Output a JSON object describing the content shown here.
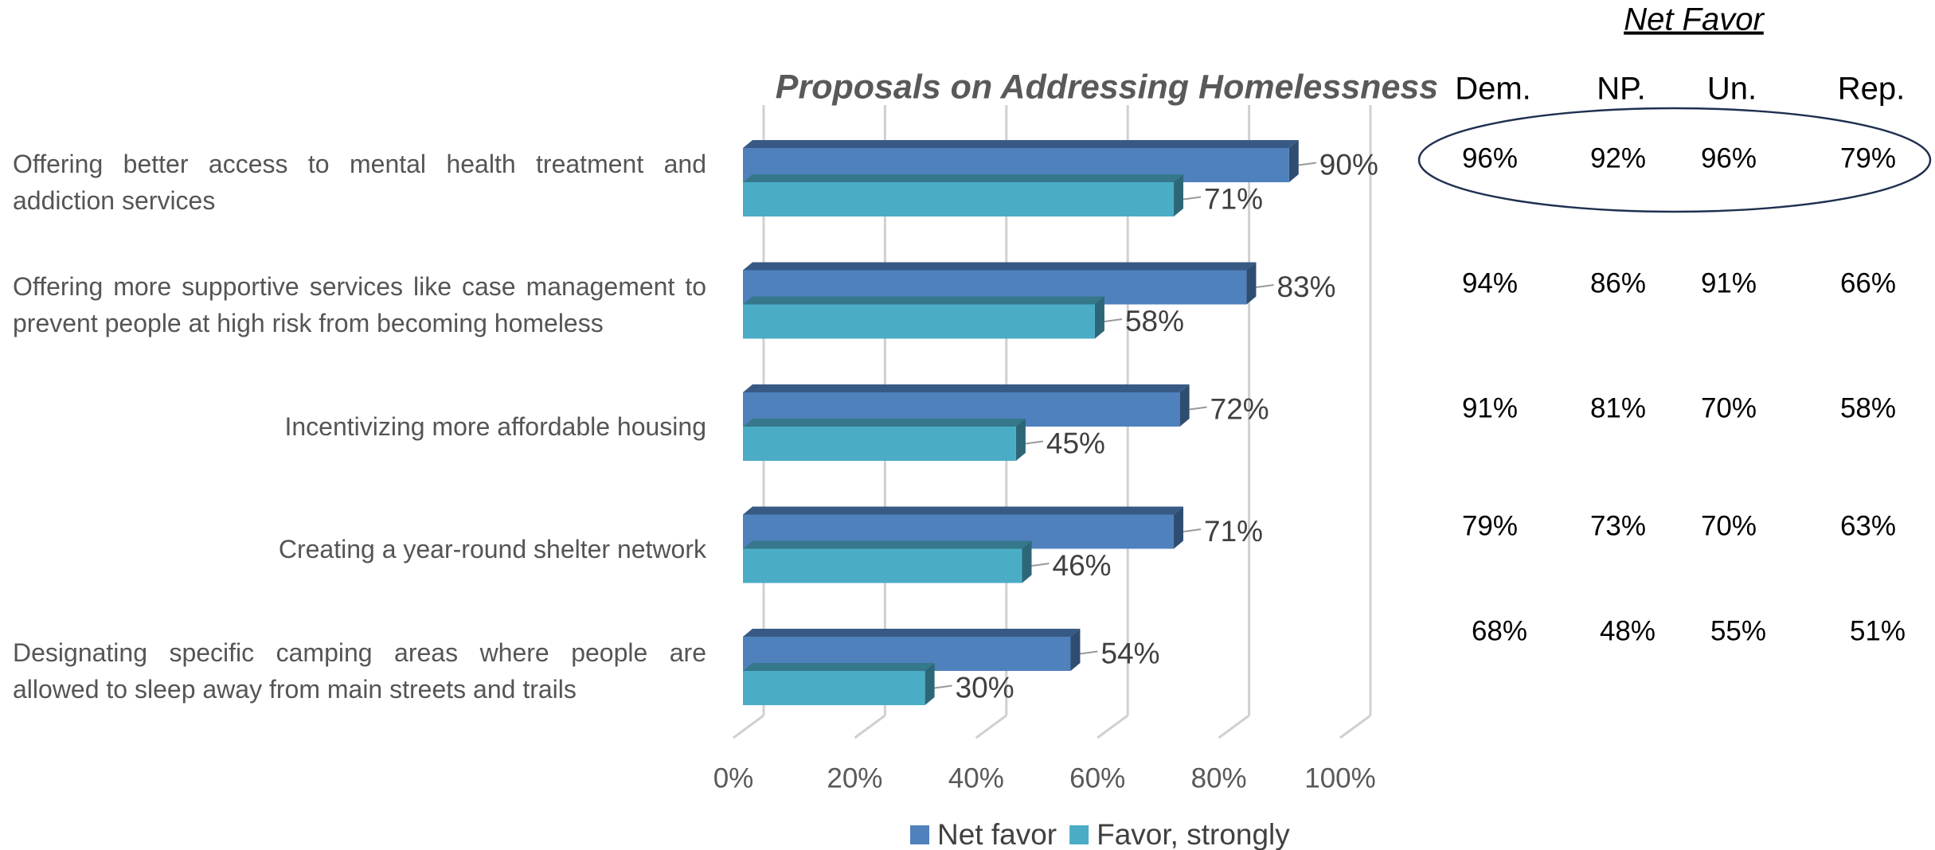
{
  "chart_data": {
    "type": "bar",
    "orientation": "horizontal",
    "title": "Proposals on Addressing Homelessness",
    "categories": [
      "Offering better access to mental health treatment and addiction services",
      "Offering more supportive services like case management to prevent people at high risk from becoming homeless",
      "Incentivizing more affordable housing",
      "Creating a year-round shelter network",
      "Designating specific camping areas where people are allowed to sleep away from main streets and trails"
    ],
    "series": [
      {
        "name": "Net favor",
        "color": "#4f81bd",
        "values": [
          90,
          83,
          72,
          71,
          54
        ],
        "value_labels": [
          "90%",
          "83%",
          "72%",
          "71%",
          "54%"
        ]
      },
      {
        "name": "Favor, strongly",
        "color": "#4bacc6",
        "values": [
          71,
          58,
          45,
          46,
          30
        ],
        "value_labels": [
          "71%",
          "58%",
          "45%",
          "46%",
          "30%"
        ]
      }
    ],
    "xlim": [
      0,
      100
    ],
    "xticks": [
      {
        "value": 0,
        "label": "0%"
      },
      {
        "value": 20,
        "label": "20%"
      },
      {
        "value": 40,
        "label": "40%"
      },
      {
        "value": 60,
        "label": "60%"
      },
      {
        "value": 80,
        "label": "80%"
      },
      {
        "value": 100,
        "label": "100%"
      }
    ],
    "grid": true,
    "legend": "bottom"
  },
  "net_favor_table": {
    "title": "Net Favor",
    "columns": [
      "Dem.",
      "NP.",
      "Un.",
      "Rep."
    ],
    "rows": [
      [
        "96%",
        "92%",
        "96%",
        "79%"
      ],
      [
        "94%",
        "86%",
        "91%",
        "66%"
      ],
      [
        "91%",
        "81%",
        "70%",
        "58%"
      ],
      [
        "79%",
        "73%",
        "70%",
        "63%"
      ],
      [
        "68%",
        "48%",
        "55%",
        "51%"
      ]
    ]
  }
}
